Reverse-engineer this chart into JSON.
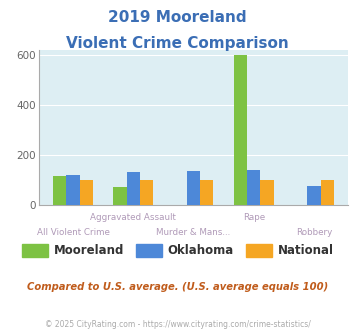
{
  "title_line1": "2019 Mooreland",
  "title_line2": "Violent Crime Comparison",
  "categories": [
    "All Violent Crime",
    "Aggravated Assault",
    "Murder & Mans...",
    "Rape",
    "Robbery"
  ],
  "label_top": [
    "",
    "Aggravated Assault",
    "",
    "Rape",
    ""
  ],
  "label_bot": [
    "All Violent Crime",
    "",
    "Murder & Mans...",
    "",
    "Robbery"
  ],
  "mooreland": [
    115,
    70,
    0,
    597,
    0
  ],
  "oklahoma": [
    120,
    130,
    135,
    140,
    75
  ],
  "national": [
    100,
    100,
    100,
    100,
    100
  ],
  "color_mooreland": "#7dc243",
  "color_oklahoma": "#4d88d8",
  "color_national": "#f5a623",
  "bg_color": "#ddeef3",
  "ylim": [
    0,
    620
  ],
  "yticks": [
    0,
    200,
    400,
    600
  ],
  "footnote": "Compared to U.S. average. (U.S. average equals 100)",
  "copyright": "© 2025 CityRating.com - https://www.cityrating.com/crime-statistics/",
  "title_color": "#3b6eb5",
  "axis_label_color": "#b09ab8",
  "footnote_color": "#c05c1c",
  "copyright_color": "#aaaaaa",
  "legend_text_color": "#333333"
}
